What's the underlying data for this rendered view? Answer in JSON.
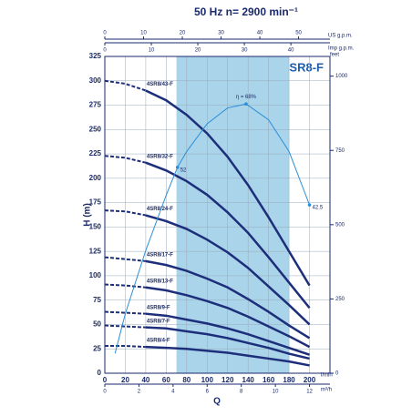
{
  "chart_data": {
    "type": "line",
    "title": "50 Hz   n= 2900 min⁻¹",
    "chart_label": "4SR8-F",
    "x_label": "Q",
    "x_unit": "l/min",
    "y_label": "H (m)",
    "xlim": [
      0,
      220
    ],
    "xticks": [
      0,
      20,
      40,
      60,
      80,
      100,
      120,
      140,
      160,
      180,
      200
    ],
    "ylim": [
      0,
      325
    ],
    "yticks": [
      0,
      25,
      50,
      75,
      100,
      125,
      150,
      175,
      200,
      225,
      250,
      275,
      300,
      325
    ],
    "grid": true,
    "shaded_range": [
      70,
      180
    ],
    "shade_color": "#a9d4ea",
    "solid_from": 40,
    "feet_label": "feet",
    "feet_lim": [
      0,
      1066.3
    ],
    "feet_ticks": [
      0,
      250,
      500,
      750,
      1000
    ],
    "us_gpm_label": "US g.p.m.",
    "us_gpm_lim": [
      0,
      58.1
    ],
    "us_gpm_ticks": [
      0,
      10,
      20,
      30,
      40,
      50
    ],
    "imp_gpm_label": "Imp g.p.m.",
    "imp_gpm_lim": [
      0,
      48.4
    ],
    "imp_gpm_ticks": [
      0,
      10,
      20,
      30,
      40
    ],
    "m3h_label": "m³/h",
    "m3h_lim": [
      0,
      13.2
    ],
    "m3h_ticks": [
      0,
      2,
      4,
      6,
      8,
      10,
      12
    ],
    "x": [
      0,
      20,
      40,
      60,
      80,
      100,
      120,
      140,
      160,
      180,
      200
    ],
    "series": [
      {
        "name": "4SR8/43-F",
        "color": "#1d2e7a",
        "values": [
          300,
          297,
          290,
          280,
          265,
          246,
          222,
          193,
          160,
          125,
          90
        ]
      },
      {
        "name": "4SR8/32-F",
        "color": "#1d2e7a",
        "values": [
          223,
          221,
          216,
          208,
          197,
          183,
          165,
          144,
          119,
          93,
          67
        ]
      },
      {
        "name": "4SR8/24-F",
        "color": "#1d2e7a",
        "values": [
          167,
          166,
          162,
          156,
          148,
          137,
          124,
          108,
          89,
          70,
          50
        ]
      },
      {
        "name": "4SR8/17-F",
        "color": "#1d2e7a",
        "values": [
          119,
          117,
          115,
          111,
          105,
          97,
          88,
          76,
          63,
          49,
          36
        ]
      },
      {
        "name": "4SR8/13-F",
        "color": "#1d2e7a",
        "values": [
          91,
          90,
          88,
          85,
          80,
          74,
          67,
          58,
          48,
          38,
          27
        ]
      },
      {
        "name": "4SR8/9-F",
        "color": "#1d2e7a",
        "values": [
          63,
          62,
          61,
          59,
          55,
          51,
          46,
          40,
          33,
          26,
          19
        ]
      },
      {
        "name": "4SR8/7-F",
        "color": "#1d2e7a",
        "values": [
          49,
          48,
          47,
          46,
          43,
          40,
          36,
          31,
          26,
          20,
          15
        ]
      },
      {
        "name": "4SR8/4-F",
        "color": "#1d2e7a",
        "values": [
          28,
          28,
          27,
          26,
          25,
          23,
          21,
          18,
          15,
          12,
          8
        ]
      }
    ],
    "efficiency": {
      "color": "#2a8fd6",
      "lim": [
        0,
        80
      ],
      "x": [
        10,
        20,
        40,
        60,
        71,
        80,
        100,
        120,
        138,
        160,
        180,
        200
      ],
      "values": [
        5,
        15,
        31,
        45,
        52,
        56,
        63,
        67,
        68,
        64,
        56,
        42.5
      ],
      "annotations": [
        {
          "x": 138,
          "value": 68,
          "label": "η = 68%"
        },
        {
          "x": 71,
          "value": 52
        },
        {
          "x": 200,
          "value": 42.5
        }
      ]
    }
  }
}
